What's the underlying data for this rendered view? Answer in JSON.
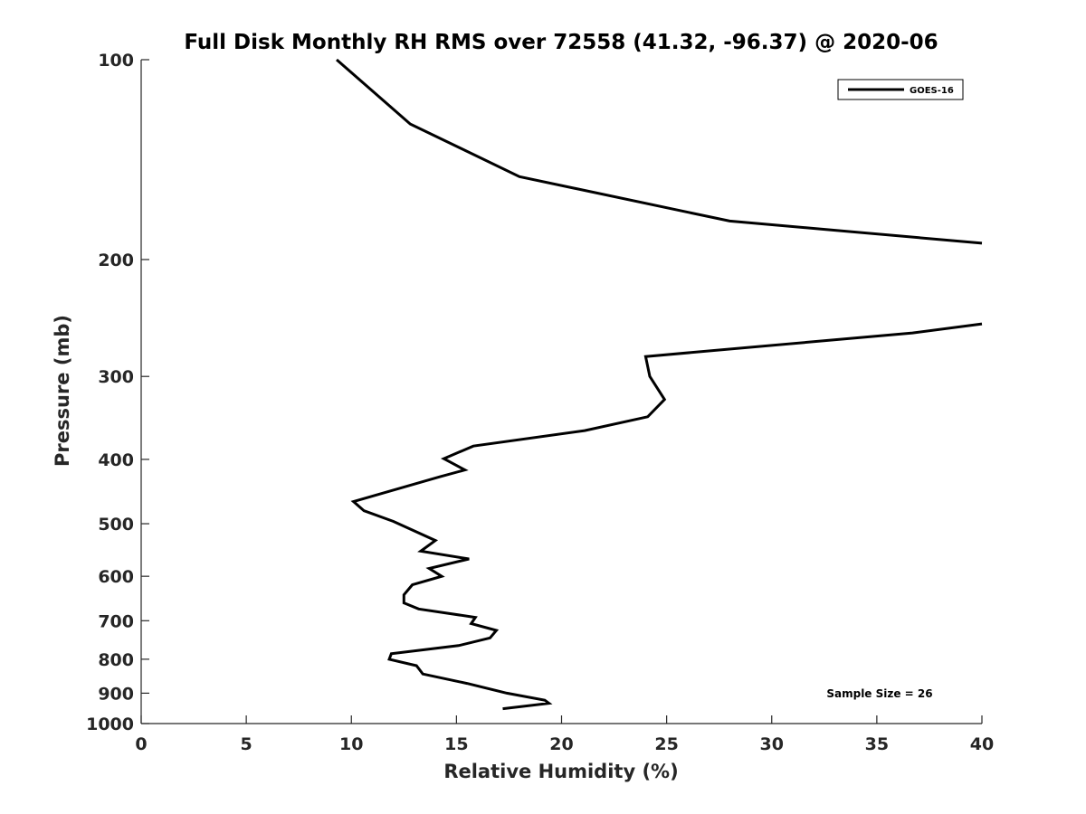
{
  "chart_data": {
    "type": "line",
    "title": "Full Disk Monthly RH RMS over 72558 (41.32, -96.37) @ 2020-06",
    "xlabel": "Relative Humidity (%)",
    "ylabel": "Pressure (mb)",
    "xlim": [
      0,
      40
    ],
    "ylim": [
      100,
      1000
    ],
    "yscale": "log",
    "y_reversed": true,
    "x_ticks": [
      0,
      5,
      10,
      15,
      20,
      25,
      30,
      35,
      40
    ],
    "y_ticks": [
      100,
      200,
      300,
      400,
      500,
      600,
      700,
      800,
      900,
      1000
    ],
    "grid": false,
    "legend_position": "top-right",
    "annotation": "Sample Size = 26",
    "series": [
      {
        "name": "GOES-16",
        "color": "#000000",
        "segments": [
          {
            "x": [
              9.3,
              12.8,
              18.0,
              28.0,
              40.0
            ],
            "y": [
              100,
              125,
              150,
              175,
              189
            ]
          },
          {
            "x": [
              40.0,
              36.7,
              24.0,
              24.2,
              24.9,
              24.1,
              21.1,
              15.8,
              14.4,
              15.4,
              14.2,
              10.1,
              10.6,
              12.0,
              14.0,
              13.3,
              15.6,
              13.7,
              14.3,
              12.9,
              12.5,
              12.5,
              13.2,
              15.9,
              15.7,
              16.9,
              16.6,
              15.1,
              11.9,
              11.8,
              13.1,
              13.4,
              15.5,
              17.4,
              19.2,
              19.4,
              17.2
            ],
            "y": [
              250,
              258,
              280,
              300,
              325,
              345,
              362,
              382,
              399,
              415,
              425,
              463,
              478,
              496,
              530,
              550,
              565,
              584,
              600,
              618,
              640,
              658,
              672,
              692,
              707,
              724,
              743,
              763,
              785,
              800,
              818,
              842,
              870,
              900,
              922,
              932,
              950
            ]
          }
        ]
      }
    ]
  }
}
